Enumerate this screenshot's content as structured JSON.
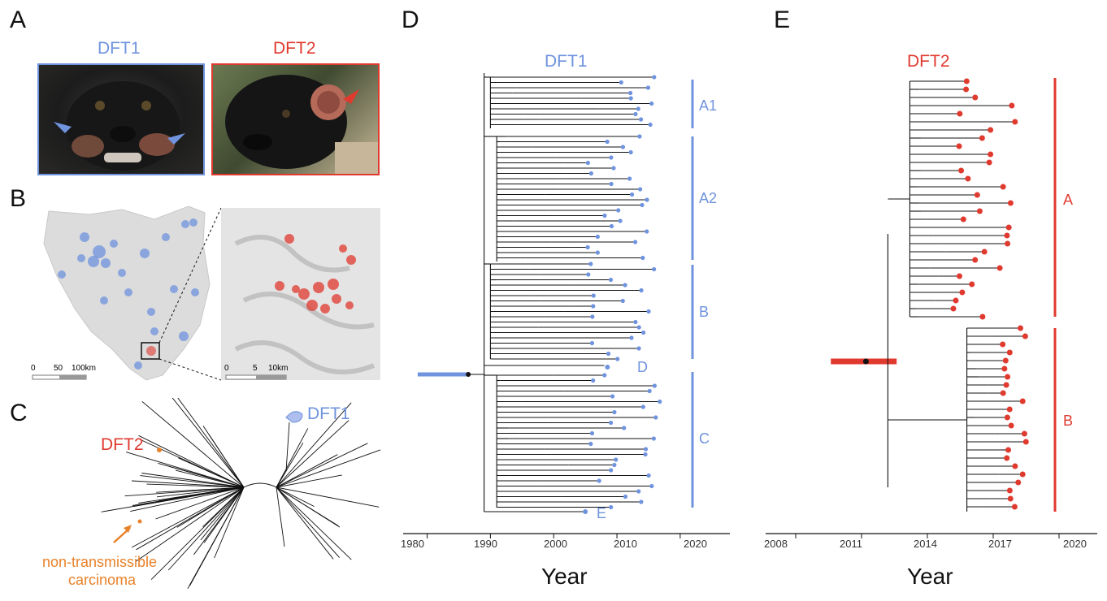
{
  "panels": {
    "A": {
      "letter": "A",
      "dft1_title": "DFT1",
      "dft2_title": "DFT2"
    },
    "B": {
      "letter": "B",
      "scale_left": [
        "0",
        "50",
        "100km"
      ],
      "scale_right": [
        "0",
        "5",
        "10km"
      ]
    },
    "C": {
      "letter": "C",
      "dft1_label": "DFT1",
      "dft2_label": "DFT2",
      "carcinoma_label_1": "non-transmissible",
      "carcinoma_label_2": "carcinoma"
    },
    "D": {
      "letter": "D",
      "title": "DFT1",
      "clades": [
        "A1",
        "A2",
        "B",
        "D",
        "C",
        "E"
      ],
      "x_ticks": [
        "1980",
        "1990",
        "2000",
        "2010",
        "2020"
      ],
      "x_label": "Year"
    },
    "E": {
      "letter": "E",
      "title": "DFT2",
      "clades": [
        "A",
        "B"
      ],
      "x_ticks": [
        "2008",
        "2011",
        "2014",
        "2017",
        "2020"
      ],
      "x_label": "Year"
    }
  },
  "colors": {
    "dft1": "#6f93dd",
    "dft2": "#e03a2f",
    "carcinoma": "#e8822a",
    "tree": "#111111"
  },
  "chart_data": [
    {
      "type": "tree",
      "panel": "D",
      "title": "DFT1",
      "xlabel": "Year",
      "xlim": [
        1978,
        2024
      ],
      "x_ticks": [
        1980,
        1990,
        2000,
        2010,
        2020
      ],
      "root_year": 1986.5,
      "clades": [
        "A1",
        "A2",
        "B",
        "D",
        "C",
        "E"
      ]
    },
    {
      "type": "tree",
      "panel": "E",
      "title": "DFT2",
      "xlabel": "Year",
      "xlim": [
        2007,
        2021
      ],
      "x_ticks": [
        2008,
        2011,
        2014,
        2017,
        2020
      ],
      "root_year": 2011.2,
      "clades": [
        "A",
        "B"
      ]
    }
  ]
}
